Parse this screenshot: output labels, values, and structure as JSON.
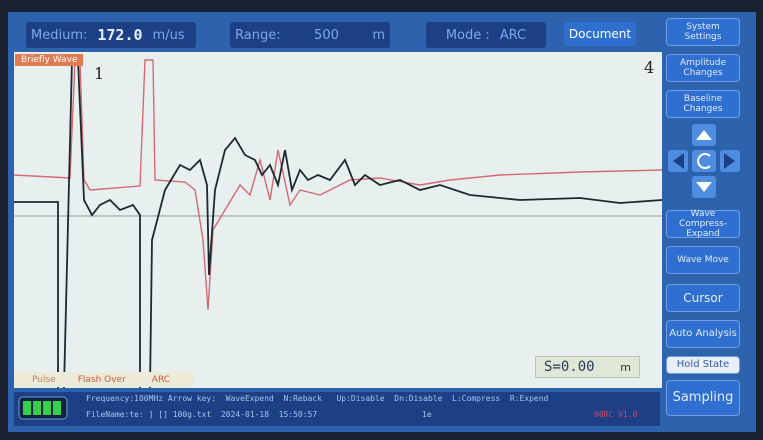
{
  "top_bar": {
    "medium_label": "Medium:",
    "medium_value": "172.0",
    "medium_unit": "m/us",
    "range_label": "Range:",
    "range_value": "500",
    "range_unit": "m",
    "mode_label": "Mode :",
    "mode_value": "ARC",
    "document": "Document"
  },
  "side_buttons": [
    "System Settings",
    "Amplitude Changes",
    "Baseline Changes",
    "Wave Compress-Expand",
    "Wave Move",
    "Cursor",
    "Auto Analysis",
    "Hold State",
    "Sampling"
  ],
  "plot": {
    "tag": "Briefly Wave",
    "marker_left": "1",
    "marker_right": "4",
    "distance": "S=0.00",
    "distance_unit": "m",
    "tabs": [
      "Pulse",
      "Flash Over",
      "ARC"
    ]
  },
  "status": {
    "line1": "Frequency:100MHz Arrow key:  WaveExpend  N:Reback   Up:Disable  Dn:Disable  L:Compress  R:Expend",
    "line2": "FileName:te: ] [] 100g.txt  2024-01-18  15:50:57",
    "code": "1e",
    "version": "00RC V1.0"
  }
}
